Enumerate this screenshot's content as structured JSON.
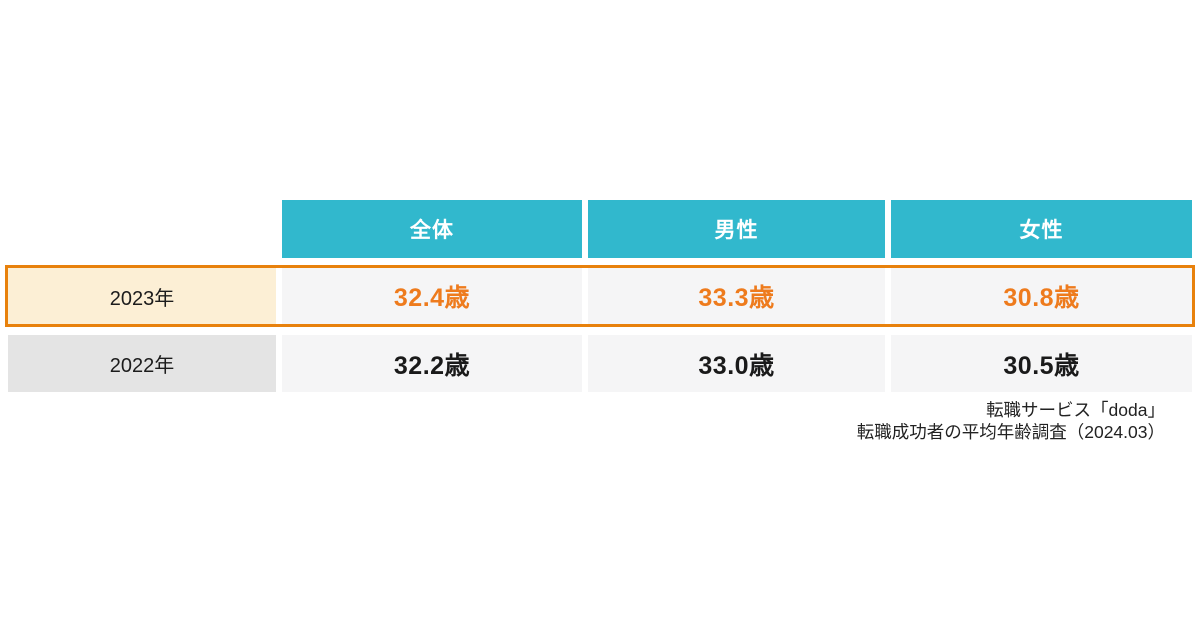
{
  "table": {
    "columns": [
      "全体",
      "男性",
      "女性"
    ],
    "rows": [
      {
        "label": "2023年",
        "values": [
          "32.4歳",
          "33.3歳",
          "30.8歳"
        ],
        "highlighted": true
      },
      {
        "label": "2022年",
        "values": [
          "32.2歳",
          "33.0歳",
          "30.5歳"
        ],
        "highlighted": false
      }
    ]
  },
  "source": {
    "line1": "転職サービス「doda」",
    "line2": "転職成功者の平均年齢調査（2024.03）"
  },
  "colors": {
    "header_bg": "#31b8cd",
    "header_text": "#ffffff",
    "highlight_border": "#e8810c",
    "highlight_value_text": "#ee7b1d",
    "highlight_label_bg": "#fcefd5",
    "label_bg": "#e4e4e4",
    "cell_bg": "#f5f5f6",
    "value_text": "#1a1a1a",
    "background": "#ffffff"
  },
  "chart_data": {
    "type": "table",
    "title": "転職成功者の平均年齢",
    "columns": [
      "",
      "全体",
      "男性",
      "女性"
    ],
    "rows": [
      [
        "2023年",
        "32.4歳",
        "33.3歳",
        "30.8歳"
      ],
      [
        "2022年",
        "32.2歳",
        "33.0歳",
        "30.5歳"
      ]
    ],
    "series": [
      {
        "name": "2023年",
        "values": [
          32.4,
          33.3,
          30.8
        ]
      },
      {
        "name": "2022年",
        "values": [
          32.2,
          33.0,
          30.5
        ]
      }
    ],
    "categories": [
      "全体",
      "男性",
      "女性"
    ],
    "unit": "歳",
    "highlighted_row": "2023年",
    "source": "転職サービス「doda」 転職成功者の平均年齢調査（2024.03）"
  }
}
